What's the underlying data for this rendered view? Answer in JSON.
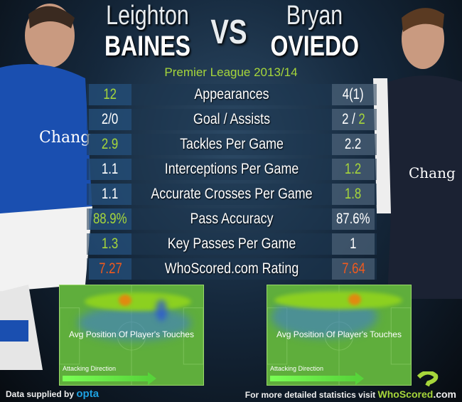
{
  "header": {
    "left_player": {
      "first": "Leighton",
      "last": "BAINES"
    },
    "vs": "VS",
    "right_player": {
      "first": "Bryan",
      "last": "OVIEDO"
    },
    "season": "Premier League 2013/14"
  },
  "stats": [
    {
      "label": "Appearances",
      "left": "12",
      "right": "4(1)",
      "left_color": "green",
      "right_color": "white"
    },
    {
      "label": "Goal / Assists",
      "left": "2/0",
      "right_a": "2 / ",
      "right_b": "2",
      "left_color": "white",
      "right_color": "white"
    },
    {
      "label": "Tackles Per Game",
      "left": "2.9",
      "right": "2.2",
      "left_color": "green",
      "right_color": "white"
    },
    {
      "label": "Interceptions Per Game",
      "left": "1.1",
      "right": "1.2",
      "left_color": "white",
      "right_color": "green"
    },
    {
      "label": "Accurate Crosses Per Game",
      "left": "1.1",
      "right": "1.8",
      "left_color": "white",
      "right_color": "green"
    },
    {
      "label": "Pass Accuracy",
      "left": "88.9%",
      "right": "87.6%",
      "left_color": "green",
      "right_color": "white"
    },
    {
      "label": "Key Passes Per Game",
      "left": "1.3",
      "right": "1",
      "left_color": "green",
      "right_color": "white"
    },
    {
      "label": "WhoScored.com Rating",
      "left": "7.27",
      "right": "7.64",
      "left_color": "orange",
      "right_color": "orange"
    }
  ],
  "heatmaps": [
    {
      "caption": "Avg Position Of Player's Touches",
      "direction": "Attacking Direction"
    },
    {
      "caption": "Avg Position Of Player's Touches",
      "direction": "Attacking Direction"
    }
  ],
  "footer": {
    "left": "Data supplied by",
    "left_brand": "opta",
    "right": "For more detailed statistics visit",
    "right_brand": "WhoScored",
    "right_brand_dot": ".com"
  },
  "colors": {
    "green": "#a6d63b",
    "orange": "#f05a1e",
    "opta": "#1ea0e0"
  }
}
